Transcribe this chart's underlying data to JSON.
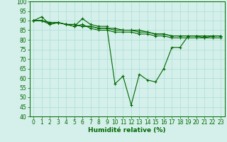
{
  "x": [
    0,
    1,
    2,
    3,
    4,
    5,
    6,
    7,
    8,
    9,
    10,
    11,
    12,
    13,
    14,
    15,
    16,
    17,
    18,
    19,
    20,
    21,
    22,
    23
  ],
  "line1": [
    90,
    92,
    88,
    89,
    88,
    87,
    91,
    88,
    87,
    87,
    57,
    61,
    46,
    62,
    59,
    58,
    65,
    76,
    76,
    82,
    82,
    81,
    82,
    82
  ],
  "line2": [
    90,
    90,
    88,
    89,
    88,
    87,
    88,
    86,
    85,
    85,
    84,
    84,
    84,
    83,
    83,
    82,
    82,
    81,
    81,
    81,
    81,
    81,
    81,
    81
  ],
  "line3": [
    90,
    90,
    89,
    89,
    88,
    88,
    87,
    87,
    86,
    86,
    85,
    85,
    85,
    84,
    84,
    83,
    83,
    82,
    82,
    82,
    82,
    82,
    82,
    82
  ],
  "line4": [
    90,
    90,
    89,
    89,
    88,
    88,
    87,
    87,
    86,
    86,
    86,
    85,
    85,
    85,
    84,
    83,
    83,
    82,
    82,
    82,
    82,
    82,
    82,
    82
  ],
  "line_color": "#006600",
  "bg_color": "#d5f0eb",
  "grid_color": "#aaddd5",
  "xlabel": "Humidité relative (%)",
  "ylim": [
    40,
    100
  ],
  "xlim": [
    -0.5,
    23.5
  ],
  "yticks": [
    40,
    45,
    50,
    55,
    60,
    65,
    70,
    75,
    80,
    85,
    90,
    95,
    100
  ],
  "xticks": [
    0,
    1,
    2,
    3,
    4,
    5,
    6,
    7,
    8,
    9,
    10,
    11,
    12,
    13,
    14,
    15,
    16,
    17,
    18,
    19,
    20,
    21,
    22,
    23
  ],
  "tick_fontsize": 5.5,
  "xlabel_fontsize": 6.5,
  "marker_size": 3,
  "linewidth": 0.8
}
